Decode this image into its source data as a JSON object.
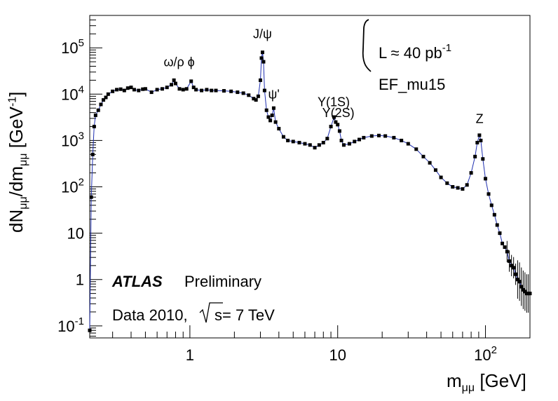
{
  "chart_data": {
    "type": "scatter",
    "xlabel": "m_{μμ} [GeV]",
    "ylabel": "dN_{μμ}/dm_{μμ} [GeV^{-1}]",
    "xscale": "log",
    "yscale": "log",
    "xlim": [
      0.21,
      200
    ],
    "ylim": [
      0.055,
      500000
    ],
    "x_ticks": [
      {
        "value": 1,
        "label": "1"
      },
      {
        "value": 10,
        "label": "10"
      },
      {
        "value": 100,
        "label": "10",
        "exp": "2"
      }
    ],
    "y_ticks": [
      {
        "value": 0.1,
        "label": "10",
        "exp": "-1"
      },
      {
        "value": 1,
        "label": "1"
      },
      {
        "value": 10,
        "label": "10"
      },
      {
        "value": 100,
        "label": "10",
        "exp": "2"
      },
      {
        "value": 1000,
        "label": "10",
        "exp": "3"
      },
      {
        "value": 10000,
        "label": "10",
        "exp": "4"
      },
      {
        "value": 100000,
        "label": "10",
        "exp": "5"
      }
    ],
    "annotations": [
      {
        "text": "ω/ρ",
        "x": 0.78,
        "y": 40000
      },
      {
        "text": "ϕ",
        "x": 1.02,
        "y": 40000
      },
      {
        "text": "J/ψ",
        "x": 3.1,
        "y": 160000
      },
      {
        "text": "ψ'",
        "x": 3.7,
        "y": 8000
      },
      {
        "text": "Υ(1S)",
        "x": 9.4,
        "y": 5500
      },
      {
        "text": "Υ(2S)",
        "x": 10.1,
        "y": 3200
      },
      {
        "text": "Z",
        "x": 91.2,
        "y": 2400
      }
    ],
    "legend": {
      "lumi": "L ≈ 40 pb",
      "lumi_exp": "-1",
      "trigger": "EF_mu15",
      "experiment": "ATLAS",
      "status": "Preliminary",
      "dataset": "Data 2010,",
      "energy": "s= 7 TeV"
    },
    "series": [
      {
        "color": "#000000",
        "line_color": "#1f2fb0",
        "points": [
          [
            0.21,
            0.08
          ],
          [
            0.215,
            60
          ],
          [
            0.22,
            500
          ],
          [
            0.225,
            2000
          ],
          [
            0.23,
            3500
          ],
          [
            0.24,
            4500
          ],
          [
            0.25,
            6000
          ],
          [
            0.26,
            7500
          ],
          [
            0.27,
            8500
          ],
          [
            0.28,
            10000
          ],
          [
            0.3,
            11500
          ],
          [
            0.32,
            12500
          ],
          [
            0.34,
            12800
          ],
          [
            0.36,
            12000
          ],
          [
            0.38,
            13500
          ],
          [
            0.4,
            14000
          ],
          [
            0.42,
            12500
          ],
          [
            0.45,
            12000
          ],
          [
            0.48,
            12800
          ],
          [
            0.5,
            13000
          ],
          [
            0.55,
            11000
          ],
          [
            0.6,
            12500
          ],
          [
            0.65,
            13000
          ],
          [
            0.7,
            14000
          ],
          [
            0.75,
            16000
          ],
          [
            0.78,
            20000
          ],
          [
            0.8,
            17000
          ],
          [
            0.85,
            13000
          ],
          [
            0.9,
            12500
          ],
          [
            0.95,
            13000
          ],
          [
            1.02,
            19000
          ],
          [
            1.06,
            14000
          ],
          [
            1.1,
            12500
          ],
          [
            1.2,
            12000
          ],
          [
            1.3,
            12500
          ],
          [
            1.4,
            12000
          ],
          [
            1.5,
            12000
          ],
          [
            1.7,
            11800
          ],
          [
            1.9,
            11500
          ],
          [
            2.1,
            11000
          ],
          [
            2.3,
            10500
          ],
          [
            2.5,
            9500
          ],
          [
            2.7,
            8000
          ],
          [
            2.8,
            7500
          ],
          [
            2.9,
            9000
          ],
          [
            3.0,
            20000
          ],
          [
            3.05,
            60000
          ],
          [
            3.1,
            80000
          ],
          [
            3.15,
            50000
          ],
          [
            3.2,
            12000
          ],
          [
            3.3,
            4500
          ],
          [
            3.4,
            3200
          ],
          [
            3.5,
            2700
          ],
          [
            3.6,
            3500
          ],
          [
            3.69,
            5000
          ],
          [
            3.8,
            2500
          ],
          [
            4.0,
            1800
          ],
          [
            4.3,
            1200
          ],
          [
            4.6,
            1000
          ],
          [
            5.0,
            950
          ],
          [
            5.5,
            900
          ],
          [
            6.0,
            850
          ],
          [
            6.5,
            800
          ],
          [
            7.0,
            700
          ],
          [
            7.5,
            800
          ],
          [
            8.0,
            900
          ],
          [
            8.5,
            1100
          ],
          [
            9.0,
            2000
          ],
          [
            9.46,
            3200
          ],
          [
            9.7,
            2500
          ],
          [
            10.0,
            2200
          ],
          [
            10.3,
            1600
          ],
          [
            10.6,
            1000
          ],
          [
            11.0,
            800
          ],
          [
            12.0,
            850
          ],
          [
            13.0,
            950
          ],
          [
            14.0,
            1050
          ],
          [
            15.0,
            1150
          ],
          [
            17.0,
            1250
          ],
          [
            19.0,
            1280
          ],
          [
            21.0,
            1250
          ],
          [
            24.0,
            1150
          ],
          [
            27.0,
            1000
          ],
          [
            30.0,
            850
          ],
          [
            34.0,
            650
          ],
          [
            38.0,
            450
          ],
          [
            42.0,
            330
          ],
          [
            46.0,
            230
          ],
          [
            50.0,
            160
          ],
          [
            55.0,
            120
          ],
          [
            60.0,
            100
          ],
          [
            65.0,
            95
          ],
          [
            70.0,
            90
          ],
          [
            75.0,
            110
          ],
          [
            80.0,
            200
          ],
          [
            85.0,
            450
          ],
          [
            88.0,
            900
          ],
          [
            91.0,
            1300
          ],
          [
            93.0,
            1000
          ],
          [
            96.0,
            400
          ],
          [
            100.0,
            150
          ],
          [
            105.0,
            70
          ],
          [
            110.0,
            40
          ],
          [
            115.0,
            25
          ],
          [
            120.0,
            15
          ],
          [
            125.0,
            10
          ],
          [
            130.0,
            6
          ],
          [
            135.0,
            5
          ],
          [
            140.0,
            4
          ],
          [
            145.0,
            2.5
          ],
          [
            150.0,
            2
          ],
          [
            155.0,
            1.8
          ],
          [
            160.0,
            1.3
          ],
          [
            165.0,
            1.0
          ],
          [
            170.0,
            0.9
          ],
          [
            175.0,
            0.7
          ],
          [
            180.0,
            0.6
          ],
          [
            185.0,
            0.55
          ],
          [
            190.0,
            0.5
          ],
          [
            195.0,
            0.5
          ],
          [
            200.0,
            0.5
          ]
        ]
      }
    ]
  }
}
